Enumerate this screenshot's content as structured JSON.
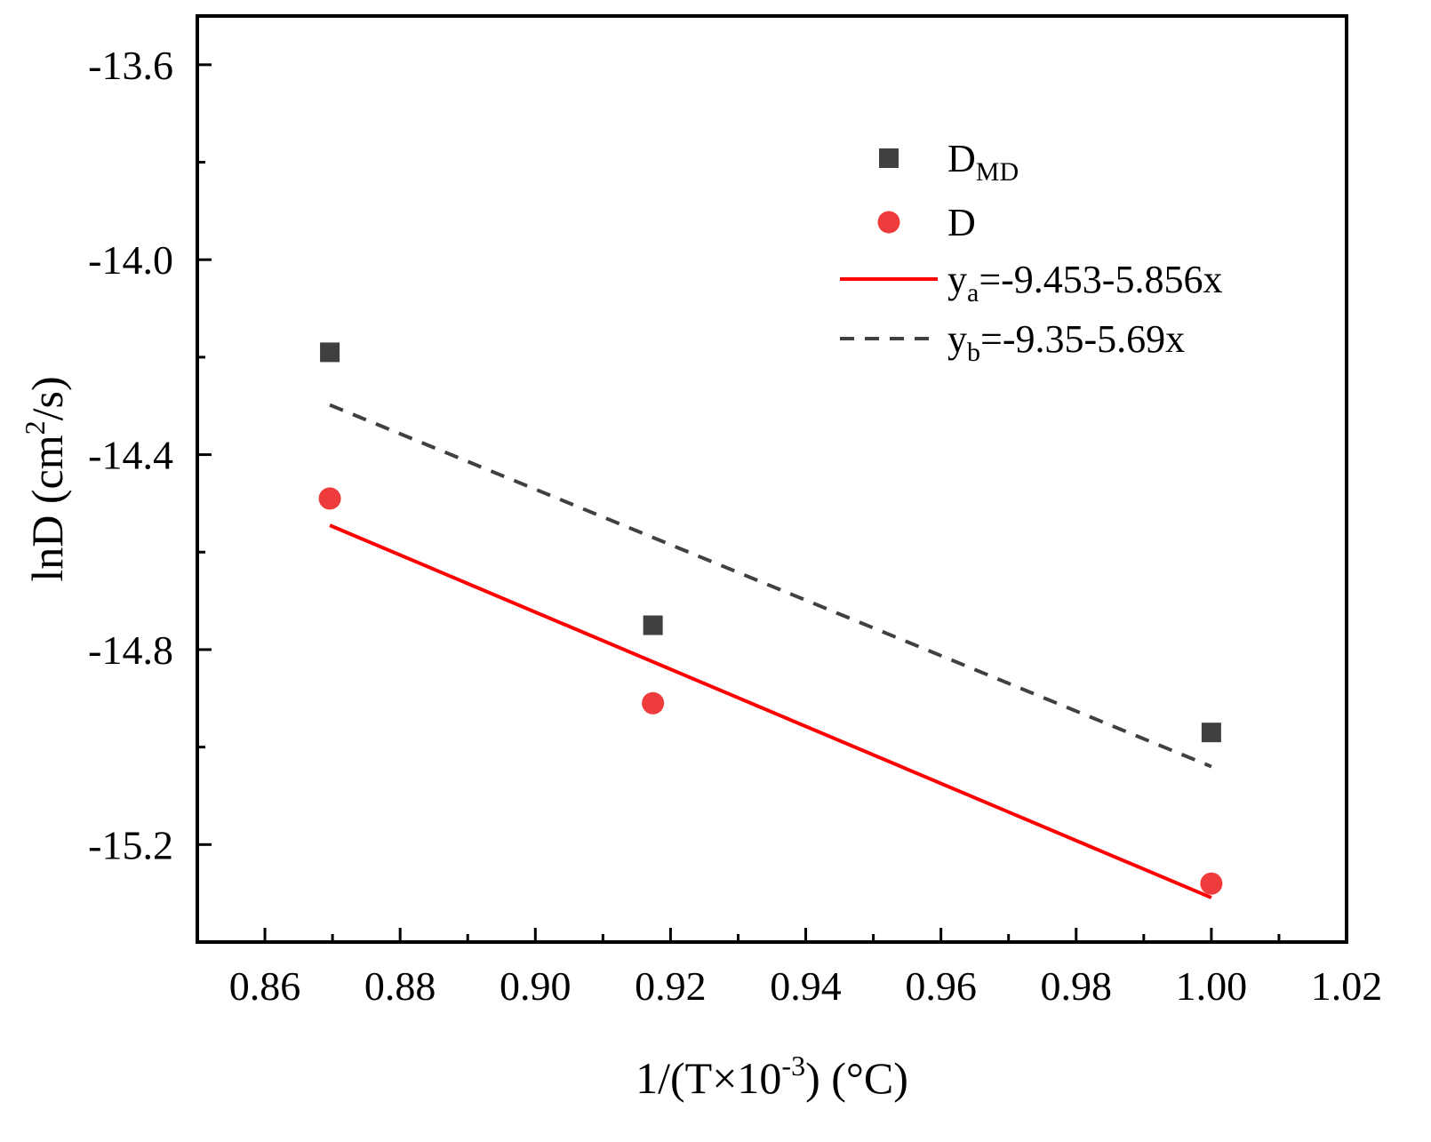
{
  "chart_data": {
    "type": "scatter",
    "xlabel": "1/(T×10-3) (°C)",
    "xlabel_parts": {
      "prefix": "1/(T×10",
      "sup": "-3",
      "suffix": ") (°C)"
    },
    "ylabel": "lnD (cm2/s)",
    "ylabel_parts": {
      "prefix": "lnD (cm",
      "sup": "2",
      "suffix": "/s)"
    },
    "xlim": [
      0.85,
      1.02
    ],
    "ylim": [
      -15.4,
      -13.5
    ],
    "x_ticks": [
      0.86,
      0.88,
      0.9,
      0.92,
      0.94,
      0.96,
      0.98,
      1.0,
      1.02
    ],
    "x_tick_labels": [
      "0.86",
      "0.88",
      "0.90",
      "0.92",
      "0.94",
      "0.96",
      "0.98",
      "1.00",
      "1.02"
    ],
    "y_ticks": [
      -13.6,
      -14.0,
      -14.4,
      -14.8,
      -15.2
    ],
    "y_tick_labels": [
      "-13.6",
      "-14.0",
      "-14.4",
      "-14.8",
      "-15.2"
    ],
    "x_minor_step": 0.01,
    "y_minor_step": 0.2,
    "grid": false,
    "legend_position": "top-right",
    "series": [
      {
        "name": "DMD",
        "name_main": "D",
        "name_sub": "MD",
        "kind": "scatter",
        "marker": "square",
        "color": "#404040",
        "x": [
          0.8696,
          0.9174,
          1.0
        ],
        "y": [
          -14.19,
          -14.75,
          -14.97
        ]
      },
      {
        "name": "D",
        "name_main": "D",
        "name_sub": "",
        "kind": "scatter",
        "marker": "circle",
        "color": "#ee3b3b",
        "x": [
          0.8696,
          0.9174,
          1.0
        ],
        "y": [
          -14.49,
          -14.91,
          -15.28
        ]
      },
      {
        "name": "ya=-9.453-5.856x",
        "name_main": "y",
        "name_sub": "a",
        "name_rest": "=-9.453-5.856x",
        "kind": "line",
        "dash": "solid",
        "color": "#ff0000",
        "x": [
          0.8696,
          1.0
        ],
        "y": [
          -14.545,
          -15.309
        ]
      },
      {
        "name": "yb=-9.35-5.69x",
        "name_main": "y",
        "name_sub": "b",
        "name_rest": "=-9.35-5.69x",
        "kind": "line",
        "dash": "dashed",
        "color": "#404040",
        "x": [
          0.8696,
          1.0
        ],
        "y": [
          -14.298,
          -15.04
        ]
      }
    ]
  }
}
